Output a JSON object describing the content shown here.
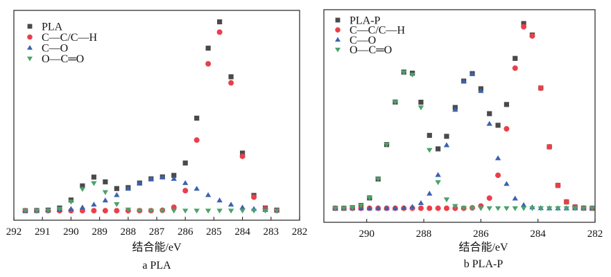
{
  "colors": {
    "total": "#4a4a4a",
    "cc_ch": "#e8404a",
    "co": "#3a62b0",
    "oco": "#4aa36a",
    "axis": "#333333"
  },
  "chart_data": [
    {
      "type": "scatter",
      "caption": "a  PLA",
      "xlabel": "结合能/eV",
      "ylabel": "",
      "xlim": [
        292,
        282
      ],
      "ylim": [
        -5,
        105
      ],
      "x_reversed": true,
      "xticks": [
        "292",
        "291",
        "290",
        "289",
        "288",
        "287",
        "286",
        "285",
        "284",
        "283",
        "282"
      ],
      "yticks_shown": false,
      "grid": false,
      "legend_position": "top-left",
      "x": [
        291.6,
        291.2,
        290.8,
        290.4,
        290.0,
        289.6,
        289.2,
        288.8,
        288.4,
        288.0,
        287.6,
        287.2,
        286.8,
        286.4,
        286.0,
        285.6,
        285.2,
        284.8,
        284.4,
        284.0,
        283.6,
        283.2,
        282.8
      ],
      "series": [
        {
          "name": "PLA",
          "marker": "square",
          "color": "#4a4a4a",
          "values": [
            0,
            0.1,
            0.3,
            1.4,
            5.6,
            13.0,
            17.6,
            15.1,
            11.6,
            12.1,
            14.5,
            16.7,
            17.7,
            18.5,
            25.0,
            48.5,
            85.2,
            99.0,
            70.2,
            30.2,
            8.0,
            1.4,
            0.3
          ]
        },
        {
          "name": "C—C/C—H",
          "marker": "circle",
          "color": "#e8404a",
          "values": [
            0,
            0,
            0,
            0,
            0,
            0,
            0,
            0,
            0,
            0,
            0,
            0,
            0.2,
            1.8,
            10.5,
            37.0,
            77.0,
            93.6,
            67.0,
            28.5,
            7.1,
            1.0,
            0.1
          ]
        },
        {
          "name": "C—O",
          "marker": "triangle-up",
          "color": "#3a62b0",
          "values": [
            0,
            0.1,
            0.2,
            0.4,
            0.9,
            1.7,
            3.2,
            5.4,
            8.2,
            11.5,
            14.5,
            16.7,
            17.5,
            16.7,
            14.5,
            11.5,
            8.2,
            5.4,
            3.2,
            1.7,
            0.9,
            0.4,
            0.2
          ]
        },
        {
          "name": "O—C═O",
          "marker": "triangle-down",
          "color": "#4aa36a",
          "values": [
            0,
            0,
            0.1,
            1.0,
            4.7,
            11.3,
            14.4,
            9.7,
            3.4,
            0.6,
            0,
            0,
            0,
            0,
            0,
            0,
            0,
            0,
            0,
            0,
            0,
            0,
            0
          ]
        }
      ]
    },
    {
      "type": "scatter",
      "caption": "b  PLA-P",
      "xlabel": "结合能/eV",
      "ylabel": "",
      "xlim": [
        291.5,
        282
      ],
      "ylim": [
        -7.5,
        106
      ],
      "x_reversed": true,
      "xticks": [
        "290",
        "288",
        "286",
        "284",
        "282"
      ],
      "yticks_shown": false,
      "grid": false,
      "legend_position": "top-left",
      "x": [
        291.1,
        290.8,
        290.5,
        290.2,
        289.9,
        289.6,
        289.3,
        289.0,
        288.7,
        288.4,
        288.1,
        287.8,
        287.5,
        287.2,
        286.9,
        286.6,
        286.3,
        286.0,
        285.7,
        285.4,
        285.1,
        284.8,
        284.5,
        284.2,
        283.9,
        283.6,
        283.3,
        283.0,
        282.7,
        282.4,
        282.1
      ],
      "series": [
        {
          "name": "PLA-P",
          "marker": "square",
          "color": "#4a4a4a",
          "values": [
            0,
            0,
            0.3,
            1.5,
            5.5,
            15.6,
            34.0,
            56.7,
            72.7,
            72.1,
            56.6,
            38.9,
            31.7,
            38.4,
            53.8,
            67.9,
            71.9,
            63.8,
            50.5,
            44.3,
            55.4,
            80.0,
            98.6,
            92.5,
            64.2,
            32.8,
            12.2,
            3.4,
            0.7,
            0.1,
            0
          ]
        },
        {
          "name": "C—C/C—H",
          "marker": "circle",
          "color": "#e8404a",
          "values": [
            0,
            0,
            0,
            0,
            0,
            0,
            0,
            0,
            0,
            0,
            0,
            0,
            0,
            0,
            0,
            0,
            0.2,
            1.2,
            5.4,
            17.6,
            42.4,
            74.8,
            96.9,
            92.0,
            64.1,
            32.8,
            12.2,
            3.4,
            0.7,
            0.1,
            0
          ]
        },
        {
          "name": "C—O",
          "marker": "triangle-up",
          "color": "#3a62b0",
          "values": [
            0,
            0,
            0,
            0,
            0,
            0,
            0,
            0,
            0.2,
            0.8,
            2.8,
            7.8,
            17.8,
            33.7,
            52.6,
            67.7,
            71.7,
            62.6,
            45.1,
            26.7,
            13.0,
            5.2,
            1.7,
            0.5,
            0.1,
            0,
            0,
            0,
            0,
            0,
            0
          ]
        },
        {
          "name": "O—C═O",
          "marker": "triangle-down",
          "color": "#4aa36a",
          "values": [
            0,
            0,
            0.3,
            1.5,
            5.5,
            15.6,
            34.0,
            56.7,
            72.5,
            71.3,
            53.8,
            31.1,
            13.9,
            4.7,
            1.2,
            0.2,
            0,
            0,
            0,
            0,
            0,
            0,
            0,
            0,
            0,
            0,
            0,
            0,
            0,
            0,
            0
          ]
        }
      ]
    }
  ]
}
